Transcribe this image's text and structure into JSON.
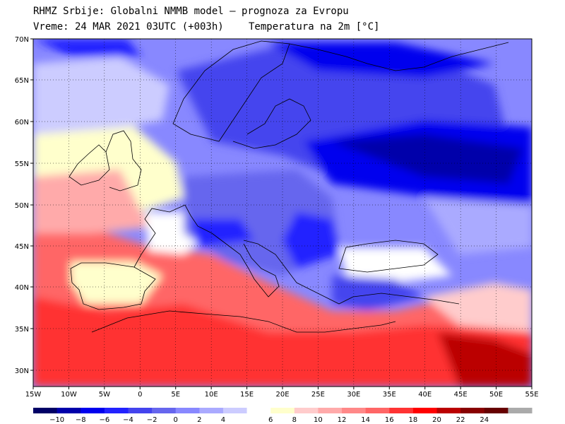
{
  "header": {
    "line1": "RHMZ Srbije: Globalni NMMB model — prognoza za Evropu",
    "line2_left": "Vreme: 24 MAR 2021 03UTC (+003h)",
    "line2_right": "Temperatura na 2m [°C]"
  },
  "map": {
    "lat_labels": [
      "70N",
      "65N",
      "60N",
      "55N",
      "50N",
      "45N",
      "40N",
      "35N",
      "30N"
    ],
    "lon_labels": [
      "15W",
      "10W",
      "5W",
      "0",
      "5E",
      "10E",
      "15E",
      "20E",
      "25E",
      "30E",
      "35E",
      "40E",
      "45E",
      "50E",
      "55E"
    ]
  },
  "legend": {
    "colors": [
      "#000066",
      "#0000aa",
      "#0000ee",
      "#2222ff",
      "#4444ee",
      "#6666ee",
      "#8888ff",
      "#aaaaff",
      "#ccccff",
      "#ffffff",
      "#ffffcc",
      "#ffcccc",
      "#ffaaaa",
      "#ff8888",
      "#ff6666",
      "#ff3333",
      "#ff0000",
      "#bb0000",
      "#880000",
      "#660000",
      "#aaaaaa"
    ],
    "labels": [
      "−10",
      "−8",
      "−6",
      "−4",
      "−2",
      "0",
      "2",
      "4",
      "6",
      "8",
      "10",
      "12",
      "14",
      "16",
      "18",
      "20",
      "22",
      "24"
    ]
  }
}
